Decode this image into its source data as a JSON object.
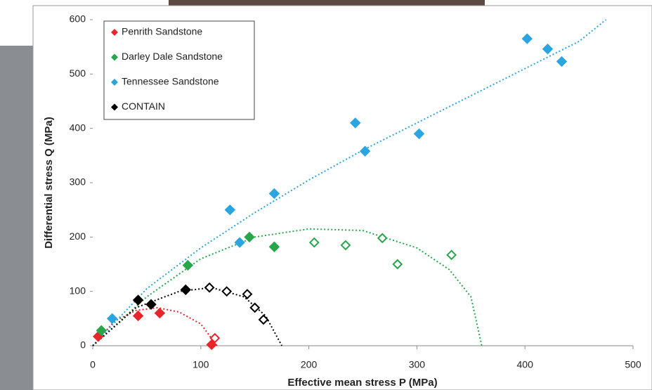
{
  "chart_data": {
    "type": "scatter",
    "xlabel": "Effective mean stress P (MPa)",
    "ylabel": "Differential stress Q (MPa)",
    "xlim": [
      0,
      500
    ],
    "ylim": [
      0,
      600
    ],
    "xticks": [
      0,
      100,
      200,
      300,
      400,
      500
    ],
    "yticks": [
      0,
      100,
      200,
      300,
      400,
      500,
      600
    ],
    "legend": "upper left",
    "series": [
      {
        "name": "Penrith Sandstone",
        "color": "#e8262a",
        "x": [
          5,
          42,
          62,
          110,
          113
        ],
        "values": [
          17,
          55,
          60,
          2,
          14
        ],
        "open": [
          false,
          false,
          false,
          false,
          true
        ]
      },
      {
        "name": "Darley Dale Sandstone",
        "color": "#27a74a",
        "x": [
          8,
          88,
          145,
          168,
          205,
          234,
          268,
          282,
          332
        ],
        "values": [
          28,
          148,
          200,
          182,
          190,
          185,
          198,
          150,
          167
        ],
        "open": [
          false,
          false,
          false,
          false,
          true,
          true,
          true,
          true,
          true
        ]
      },
      {
        "name": "Tennessee Sandstone",
        "color": "#2aa5e0",
        "x": [
          18,
          127,
          136,
          168,
          243,
          252,
          302,
          402,
          421,
          434
        ],
        "values": [
          50,
          250,
          190,
          280,
          410,
          358,
          390,
          565,
          546,
          523
        ],
        "open": [
          false,
          false,
          false,
          false,
          false,
          false,
          false,
          false,
          false,
          false
        ]
      },
      {
        "name": "CONTAIN",
        "color": "#000000",
        "x": [
          42,
          54,
          86,
          108,
          124,
          143,
          150,
          158
        ],
        "values": [
          84,
          76,
          103,
          107,
          100,
          95,
          70,
          48
        ],
        "open": [
          false,
          false,
          false,
          true,
          true,
          true,
          true,
          true
        ]
      }
    ],
    "trendlines": [
      {
        "color": "#e8262a",
        "x": [
          0,
          20,
          40,
          60,
          80,
          100,
          115
        ],
        "values": [
          0,
          45,
          65,
          70,
          62,
          40,
          0
        ]
      },
      {
        "color": "#27a74a",
        "x": [
          0,
          50,
          100,
          150,
          200,
          250,
          300,
          330,
          350,
          360
        ],
        "values": [
          0,
          90,
          160,
          200,
          215,
          212,
          180,
          140,
          90,
          0
        ]
      },
      {
        "color": "#2aa5e0",
        "x": [
          0,
          50,
          100,
          150,
          200,
          250,
          300,
          350,
          400,
          450,
          475
        ],
        "values": [
          0,
          105,
          180,
          245,
          305,
          360,
          410,
          460,
          510,
          560,
          600
        ]
      },
      {
        "color": "#000000",
        "x": [
          0,
          40,
          80,
          110,
          140,
          160,
          175
        ],
        "values": [
          0,
          70,
          100,
          107,
          90,
          55,
          0
        ]
      }
    ]
  }
}
